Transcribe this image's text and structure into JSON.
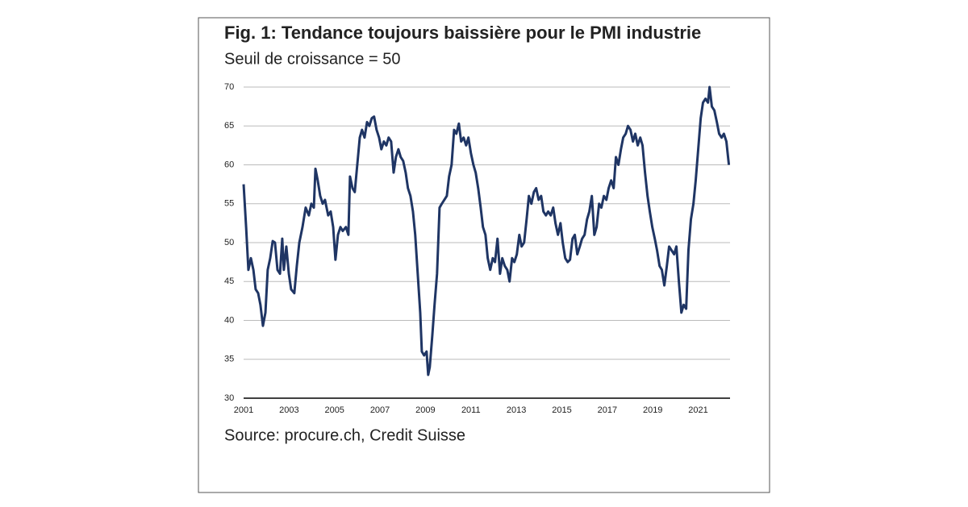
{
  "chart_data": {
    "type": "line",
    "title": "Fig. 1: Tendance toujours baissière pour le PMI industrie",
    "subtitle": "Seuil de croissance = 50",
    "source": "Source: procure.ch, Credit Suisse",
    "color": "#1f3564",
    "grid": true,
    "xlim": [
      2001,
      2022.4
    ],
    "xticks": [
      2001,
      2003,
      2005,
      2007,
      2009,
      2011,
      2013,
      2015,
      2017,
      2019,
      2021
    ],
    "ylim": [
      30,
      70
    ],
    "yticks": [
      30,
      35,
      40,
      45,
      50,
      55,
      60,
      65,
      70
    ],
    "x": [
      2001.0,
      2001.11,
      2001.21,
      2001.32,
      2001.43,
      2001.53,
      2001.64,
      2001.74,
      2001.85,
      2001.96,
      2002.06,
      2002.17,
      2002.28,
      2002.38,
      2002.49,
      2002.6,
      2002.7,
      2002.77,
      2002.88,
      2002.99,
      2003.09,
      2003.23,
      2003.34,
      2003.45,
      2003.59,
      2003.73,
      2003.87,
      2003.98,
      2004.09,
      2004.16,
      2004.26,
      2004.37,
      2004.48,
      2004.58,
      2004.72,
      2004.83,
      2004.94,
      2005.04,
      2005.15,
      2005.26,
      2005.36,
      2005.5,
      2005.61,
      2005.68,
      2005.79,
      2005.89,
      2006.0,
      2006.11,
      2006.21,
      2006.32,
      2006.43,
      2006.53,
      2006.64,
      2006.74,
      2006.85,
      2006.96,
      2007.06,
      2007.17,
      2007.28,
      2007.38,
      2007.49,
      2007.6,
      2007.7,
      2007.81,
      2007.91,
      2008.02,
      2008.13,
      2008.23,
      2008.34,
      2008.45,
      2008.55,
      2008.66,
      2008.77,
      2008.84,
      2008.94,
      2009.05,
      2009.12,
      2009.19,
      2009.3,
      2009.4,
      2009.51,
      2009.62,
      2009.72,
      2009.83,
      2009.94,
      2010.04,
      2010.15,
      2010.26,
      2010.36,
      2010.47,
      2010.57,
      2010.68,
      2010.79,
      2010.89,
      2011.0,
      2011.11,
      2011.21,
      2011.32,
      2011.43,
      2011.53,
      2011.64,
      2011.74,
      2011.85,
      2011.96,
      2012.06,
      2012.17,
      2012.28,
      2012.38,
      2012.49,
      2012.6,
      2012.7,
      2012.81,
      2012.91,
      2013.02,
      2013.13,
      2013.23,
      2013.34,
      2013.45,
      2013.55,
      2013.66,
      2013.77,
      2013.87,
      2013.98,
      2014.09,
      2014.19,
      2014.3,
      2014.4,
      2014.51,
      2014.62,
      2014.72,
      2014.83,
      2014.94,
      2015.04,
      2015.15,
      2015.26,
      2015.36,
      2015.47,
      2015.57,
      2015.68,
      2015.79,
      2015.89,
      2016.0,
      2016.11,
      2016.21,
      2016.32,
      2016.43,
      2016.53,
      2016.64,
      2016.74,
      2016.85,
      2016.96,
      2017.06,
      2017.17,
      2017.28,
      2017.38,
      2017.49,
      2017.6,
      2017.7,
      2017.81,
      2017.91,
      2018.02,
      2018.13,
      2018.23,
      2018.34,
      2018.45,
      2018.55,
      2018.66,
      2018.77,
      2018.87,
      2018.98,
      2019.09,
      2019.19,
      2019.3,
      2019.4,
      2019.51,
      2019.62,
      2019.72,
      2019.83,
      2019.94,
      2020.04,
      2020.15,
      2020.26,
      2020.36,
      2020.47,
      2020.57,
      2020.68,
      2020.79,
      2020.89,
      2021.0,
      2021.11,
      2021.21,
      2021.32,
      2021.43,
      2021.5,
      2021.6,
      2021.71,
      2021.82,
      2021.92,
      2022.03,
      2022.13,
      2022.24,
      2022.35
    ],
    "values": [
      57.5,
      52,
      46.5,
      48,
      46.5,
      44,
      43.5,
      42,
      39.3,
      41,
      46.5,
      48,
      50.2,
      50,
      46.5,
      46,
      50.5,
      46.5,
      49.5,
      46,
      44,
      43.5,
      47,
      50,
      52,
      54.5,
      53.5,
      55,
      54.5,
      59.5,
      58,
      56,
      55,
      55.5,
      53.5,
      54,
      52,
      47.8,
      51,
      52,
      51.5,
      52,
      51,
      58.5,
      57,
      56.5,
      60,
      63.5,
      64.5,
      63.5,
      65.5,
      65,
      66,
      66.2,
      64.5,
      63.5,
      62,
      63,
      62.5,
      63.5,
      63,
      59,
      61,
      62,
      61,
      60.5,
      59,
      57,
      56,
      54,
      51,
      46,
      41,
      36,
      35.5,
      36,
      33,
      34,
      38,
      42,
      46,
      54.5,
      55,
      55.5,
      56,
      58.5,
      60,
      64.5,
      64,
      65.3,
      63,
      63.5,
      62.5,
      63.5,
      61.5,
      60,
      59,
      57,
      54.5,
      52,
      51,
      48,
      46.5,
      48,
      47.5,
      50.5,
      46,
      48,
      47,
      46.5,
      45,
      48,
      47.5,
      48.5,
      51,
      49.5,
      50,
      53,
      56,
      55,
      56.5,
      57,
      55.5,
      56,
      54,
      53.5,
      54,
      53.5,
      54.5,
      52.5,
      51,
      52.5,
      50,
      48,
      47.5,
      47.8,
      50.5,
      51,
      48.5,
      49.5,
      50.5,
      51,
      53,
      54,
      56,
      51,
      52,
      55,
      54.5,
      56,
      55.5,
      57,
      58,
      57,
      61,
      60,
      62,
      63.5,
      64,
      65,
      64.5,
      63,
      64,
      62.5,
      63.5,
      62.5,
      59,
      56,
      54,
      52,
      50.5,
      49,
      47,
      46.5,
      44.5,
      47,
      49.5,
      49,
      48.5,
      49.5,
      45,
      41,
      42,
      41.5,
      49,
      53,
      55,
      58,
      62,
      66,
      68,
      68.5,
      68,
      70,
      67.5,
      67,
      65.5,
      64,
      63.5,
      64,
      63,
      60
    ]
  }
}
